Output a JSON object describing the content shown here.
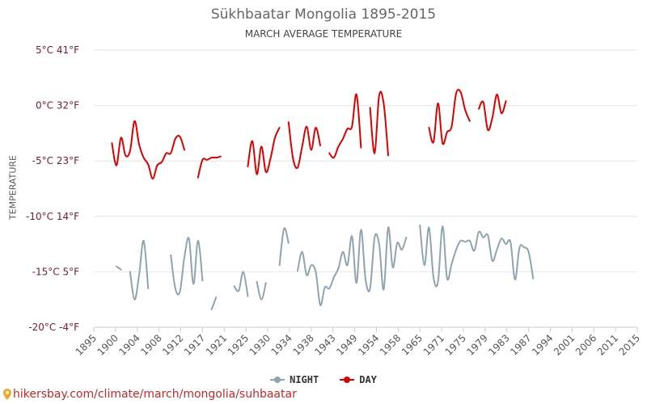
{
  "title": "Sükhbaatar Mongolia 1895-2015",
  "subtitle": "MARCH AVERAGE TEMPERATURE",
  "footer": "hikersbay.com/climate/march/mongolia/suhbaatar",
  "chart_data": {
    "type": "line",
    "title": "Sükhbaatar Mongolia 1895-2015",
    "subtitle": "MARCH AVERAGE TEMPERATURE",
    "ylabel": "TEMPERATURE",
    "xlabel": "",
    "ylim": [
      -20,
      5
    ],
    "xlim": [
      1895,
      2015
    ],
    "grid": true,
    "legend_position": "bottom",
    "x_ticks": [
      1895,
      1900,
      1904,
      1908,
      1912,
      1917,
      1921,
      1925,
      1930,
      1934,
      1938,
      1943,
      1949,
      1954,
      1958,
      1965,
      1971,
      1975,
      1979,
      1983,
      1987,
      1994,
      2001,
      2006,
      2011,
      2015
    ],
    "y_ticks": [
      {
        "value": 5,
        "label": "5°C 41°F"
      },
      {
        "value": 0,
        "label": "0°C 32°F"
      },
      {
        "value": -5,
        "label": "-5°C 23°F"
      },
      {
        "value": -10,
        "label": "-10°C 14°F"
      },
      {
        "value": -15,
        "label": "-15°C 5°F"
      },
      {
        "value": -20,
        "label": "-20°C -4°F"
      }
    ],
    "series": [
      {
        "name": "DAY",
        "color": "#dd0000",
        "segments": [
          [
            [
              1899,
              -3.4
            ],
            [
              1900,
              -5.4
            ],
            [
              1901,
              -2.9
            ],
            [
              1902,
              -4.5
            ],
            [
              1903,
              -4.1
            ],
            [
              1904,
              -1.4
            ],
            [
              1905,
              -3.5
            ],
            [
              1906,
              -4.7
            ],
            [
              1907,
              -5.3
            ],
            [
              1908,
              -6.6
            ],
            [
              1909,
              -5.4
            ],
            [
              1910,
              -5.1
            ],
            [
              1911,
              -4.3
            ],
            [
              1912,
              -4.3
            ],
            [
              1913,
              -3.0
            ],
            [
              1914,
              -2.8
            ],
            [
              1915,
              -4.0
            ]
          ],
          [
            [
              1918,
              -6.5
            ],
            [
              1919,
              -4.9
            ],
            [
              1920,
              -4.9
            ],
            [
              1921,
              -4.7
            ],
            [
              1922,
              -4.7
            ],
            [
              1923,
              -4.6
            ]
          ],
          [
            [
              1929,
              -5.5
            ],
            [
              1930,
              -3.2
            ],
            [
              1931,
              -6.2
            ],
            [
              1932,
              -3.7
            ],
            [
              1933,
              -6.0
            ],
            [
              1934,
              -4.8
            ],
            [
              1935,
              -2.9
            ],
            [
              1936,
              -2.0
            ]
          ],
          [
            [
              1938,
              -1.5
            ],
            [
              1939,
              -4.8
            ],
            [
              1940,
              -5.6
            ],
            [
              1941,
              -3.7
            ],
            [
              1942,
              -1.9
            ],
            [
              1943,
              -4.0
            ],
            [
              1944,
              -2.0
            ],
            [
              1945,
              -3.6
            ]
          ],
          [
            [
              1947,
              -4.3
            ],
            [
              1948,
              -4.7
            ],
            [
              1949,
              -3.7
            ],
            [
              1950,
              -3.0
            ],
            [
              1951,
              -2.1
            ],
            [
              1952,
              -1.9
            ],
            [
              1953,
              1.0
            ],
            [
              1954,
              -3.8
            ]
          ],
          [
            [
              1956,
              -0.2
            ],
            [
              1957,
              -4.3
            ],
            [
              1958,
              0.9
            ],
            [
              1959,
              0.2
            ],
            [
              1960,
              -4.5
            ]
          ],
          [
            [
              1969,
              -2.0
            ],
            [
              1970,
              -3.3
            ],
            [
              1971,
              0.2
            ],
            [
              1972,
              -3.4
            ],
            [
              1973,
              -2.4
            ],
            [
              1974,
              -1.9
            ],
            [
              1975,
              1.1
            ],
            [
              1976,
              1.2
            ],
            [
              1977,
              -0.4
            ],
            [
              1978,
              -1.4
            ]
          ],
          [
            [
              1980,
              -0.3
            ],
            [
              1981,
              0.3
            ],
            [
              1982,
              -2.2
            ],
            [
              1983,
              -1.1
            ],
            [
              1984,
              1.0
            ],
            [
              1985,
              -0.7
            ],
            [
              1986,
              0.4
            ]
          ]
        ]
      },
      {
        "name": "NIGHT",
        "color": "#90a4ae",
        "segments": [
          [
            [
              1900,
              -14.5
            ],
            [
              1901,
              -14.8
            ]
          ],
          [
            [
              1903,
              -15.0
            ],
            [
              1904,
              -17.5
            ],
            [
              1905,
              -15.3
            ],
            [
              1906,
              -12.2
            ],
            [
              1907,
              -16.5
            ]
          ],
          [
            [
              1912,
              -13.5
            ],
            [
              1913,
              -16.5
            ],
            [
              1914,
              -16.8
            ],
            [
              1915,
              -13.7
            ],
            [
              1916,
              -12.0
            ],
            [
              1917,
              -16.1
            ],
            [
              1918,
              -12.2
            ],
            [
              1919,
              -15.8
            ]
          ],
          [
            [
              1921,
              -18.4
            ],
            [
              1922,
              -17.3
            ]
          ],
          [
            [
              1926,
              -16.3
            ],
            [
              1927,
              -16.7
            ],
            [
              1928,
              -15.0
            ],
            [
              1929,
              -17.2
            ]
          ],
          [
            [
              1931,
              -15.9
            ],
            [
              1932,
              -17.5
            ],
            [
              1933,
              -16.0
            ]
          ],
          [
            [
              1936,
              -14.4
            ],
            [
              1937,
              -11.1
            ],
            [
              1938,
              -12.4
            ]
          ],
          [
            [
              1940,
              -14.9
            ],
            [
              1941,
              -13.2
            ],
            [
              1942,
              -15.3
            ],
            [
              1943,
              -14.4
            ],
            [
              1944,
              -15.0
            ],
            [
              1945,
              -18.0
            ],
            [
              1946,
              -16.4
            ],
            [
              1947,
              -16.5
            ],
            [
              1948,
              -15.5
            ],
            [
              1949,
              -14.7
            ],
            [
              1950,
              -13.2
            ],
            [
              1951,
              -14.4
            ],
            [
              1952,
              -11.8
            ],
            [
              1953,
              -16.0
            ],
            [
              1954,
              -11.2
            ],
            [
              1955,
              -15.7
            ],
            [
              1956,
              -16.5
            ],
            [
              1957,
              -11.9
            ],
            [
              1958,
              -12.5
            ],
            [
              1959,
              -16.6
            ],
            [
              1960,
              -11.0
            ],
            [
              1961,
              -14.6
            ],
            [
              1962,
              -12.4
            ],
            [
              1963,
              -13.0
            ],
            [
              1964,
              -11.9
            ]
          ],
          [
            [
              1967,
              -10.8
            ],
            [
              1968,
              -14.4
            ],
            [
              1969,
              -11.0
            ],
            [
              1970,
              -15.5
            ],
            [
              1971,
              -15.9
            ],
            [
              1972,
              -10.9
            ],
            [
              1973,
              -15.6
            ],
            [
              1974,
              -14.3
            ],
            [
              1975,
              -13.0
            ],
            [
              1976,
              -12.2
            ],
            [
              1977,
              -12.3
            ],
            [
              1978,
              -12.2
            ],
            [
              1979,
              -13.1
            ],
            [
              1980,
              -11.4
            ],
            [
              1981,
              -11.9
            ],
            [
              1982,
              -11.7
            ],
            [
              1983,
              -14.0
            ],
            [
              1984,
              -13.0
            ],
            [
              1985,
              -12.0
            ],
            [
              1986,
              -12.5
            ],
            [
              1987,
              -12.3
            ],
            [
              1988,
              -15.7
            ],
            [
              1989,
              -12.8
            ],
            [
              1990,
              -12.8
            ],
            [
              1991,
              -13.2
            ],
            [
              1992,
              -15.6
            ]
          ]
        ]
      }
    ]
  }
}
